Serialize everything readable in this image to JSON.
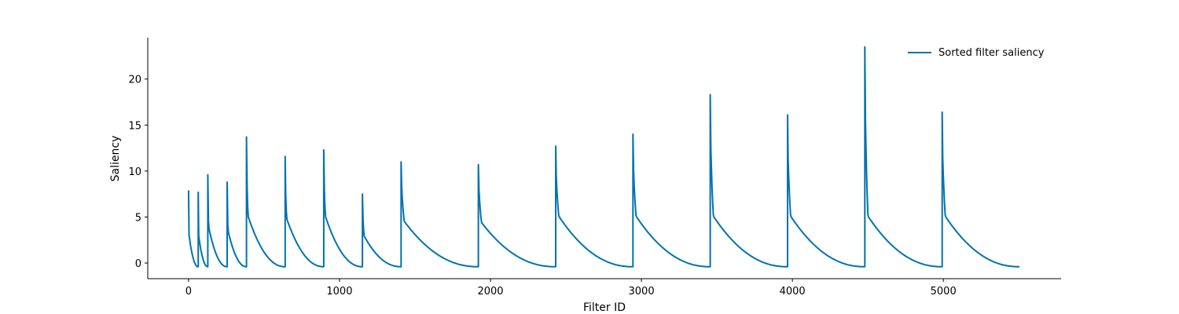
{
  "chart_data": {
    "type": "line",
    "title": "",
    "xlabel": "Filter ID",
    "ylabel": "Saliency",
    "xlim": [
      -270,
      5780
    ],
    "ylim": [
      -1.7,
      24.5
    ],
    "xticks": [
      0,
      1000,
      2000,
      3000,
      4000,
      5000
    ],
    "yticks": [
      0,
      5,
      10,
      15,
      20
    ],
    "grid": false,
    "legend_position": "top-right",
    "line_color": "#0072b2",
    "series": [
      {
        "name": "Sorted filter saliency",
        "segments": [
          {
            "start": 0,
            "end": 64,
            "peak": 7.9,
            "end_value": -0.4
          },
          {
            "start": 64,
            "end": 128,
            "peak": 7.7,
            "end_value": -0.4
          },
          {
            "start": 128,
            "end": 256,
            "peak": 9.6,
            "end_value": -0.4
          },
          {
            "start": 256,
            "end": 384,
            "peak": 8.8,
            "end_value": -0.4
          },
          {
            "start": 384,
            "end": 640,
            "peak": 13.7,
            "end_value": -0.4
          },
          {
            "start": 640,
            "end": 896,
            "peak": 11.6,
            "end_value": -0.4
          },
          {
            "start": 896,
            "end": 1152,
            "peak": 12.3,
            "end_value": -0.4
          },
          {
            "start": 1152,
            "end": 1408,
            "peak": 7.5,
            "end_value": -0.4
          },
          {
            "start": 1408,
            "end": 1920,
            "peak": 11.0,
            "end_value": -0.4
          },
          {
            "start": 1920,
            "end": 2432,
            "peak": 10.7,
            "end_value": -0.4
          },
          {
            "start": 2432,
            "end": 2944,
            "peak": 12.7,
            "end_value": -0.4
          },
          {
            "start": 2944,
            "end": 3456,
            "peak": 14.0,
            "end_value": -0.4
          },
          {
            "start": 3456,
            "end": 3968,
            "peak": 18.3,
            "end_value": -0.4
          },
          {
            "start": 3968,
            "end": 4480,
            "peak": 16.1,
            "end_value": -0.4
          },
          {
            "start": 4480,
            "end": 4992,
            "peak": 23.5,
            "end_value": -0.4
          },
          {
            "start": 4992,
            "end": 5504,
            "peak": 16.4,
            "end_value": -0.4
          }
        ]
      }
    ]
  }
}
